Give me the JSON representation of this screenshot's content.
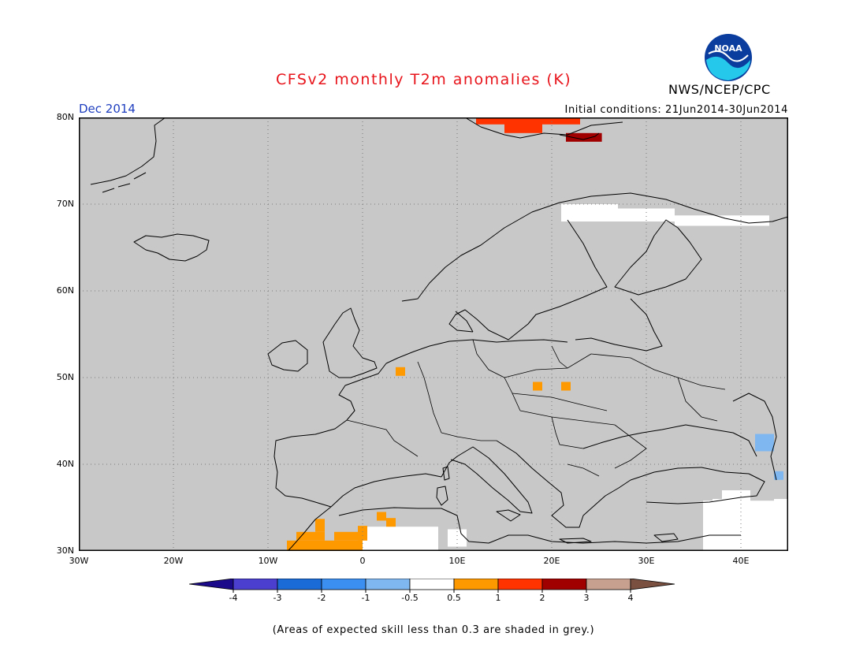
{
  "header": {
    "title": "CFSv2 monthly T2m anomalies (K)",
    "month": "Dec 2014",
    "initial_conditions": "Initial conditions: 21Jun2014-30Jun2014",
    "agency": "NWS/NCEP/CPC",
    "logo_text": "NOAA"
  },
  "map": {
    "region": "Europe",
    "lon_range": [
      -30,
      45
    ],
    "lat_range": [
      30,
      80
    ],
    "background_color": "#c8c8c8",
    "gridlines": "dotted",
    "lat_labels": [
      {
        "lat": 80,
        "text": "80N"
      },
      {
        "lat": 70,
        "text": "70N"
      },
      {
        "lat": 60,
        "text": "60N"
      },
      {
        "lat": 50,
        "text": "50N"
      },
      {
        "lat": 40,
        "text": "40N"
      },
      {
        "lat": 30,
        "text": "30N"
      }
    ],
    "lon_labels": [
      {
        "lon": -30,
        "text": "30W"
      },
      {
        "lon": -20,
        "text": "20W"
      },
      {
        "lon": -10,
        "text": "10W"
      },
      {
        "lon": 0,
        "text": "0"
      },
      {
        "lon": 10,
        "text": "10E"
      },
      {
        "lon": 20,
        "text": "20E"
      },
      {
        "lon": 30,
        "text": "30E"
      },
      {
        "lon": 40,
        "text": "40E"
      }
    ],
    "anomaly_cells": [
      {
        "lon": 12,
        "lat": 79.2,
        "w": 11,
        "h": 1,
        "color": "#ff3300"
      },
      {
        "lon": 15,
        "lat": 78.2,
        "w": 4,
        "h": 1.2,
        "color": "#ff3300"
      },
      {
        "lon": 21.5,
        "lat": 77.2,
        "w": 3.8,
        "h": 1,
        "color": "#a00000"
      },
      {
        "lon": 3.5,
        "lat": 50.2,
        "w": 1,
        "h": 1,
        "color": "#ff9900"
      },
      {
        "lon": 18,
        "lat": 48.5,
        "w": 1,
        "h": 1,
        "color": "#ff9900"
      },
      {
        "lon": 21,
        "lat": 48.5,
        "w": 1,
        "h": 1,
        "color": "#ff9900"
      },
      {
        "lon": -8,
        "lat": 30,
        "w": 8,
        "h": 1.2,
        "color": "#ff9900"
      },
      {
        "lon": -7,
        "lat": 31.2,
        "w": 3,
        "h": 1,
        "color": "#ff9900"
      },
      {
        "lon": -5,
        "lat": 32.2,
        "w": 1,
        "h": 1.5,
        "color": "#ff9900"
      },
      {
        "lon": -3,
        "lat": 31.2,
        "w": 3,
        "h": 1,
        "color": "#ff9900"
      },
      {
        "lon": -0.5,
        "lat": 31.2,
        "w": 1,
        "h": 1.7,
        "color": "#ff9900"
      },
      {
        "lon": 1.5,
        "lat": 33.5,
        "w": 1,
        "h": 1,
        "color": "#ff9900"
      },
      {
        "lon": 2.5,
        "lat": 32.8,
        "w": 1,
        "h": 1,
        "color": "#ff9900"
      },
      {
        "lon": 41.5,
        "lat": 41.5,
        "w": 2,
        "h": 2,
        "color": "#7fb8f0"
      },
      {
        "lon": 43.5,
        "lat": 38.2,
        "w": 1,
        "h": 1,
        "color": "#7fb8f0"
      }
    ],
    "neutral_regions": [
      {
        "lon": 0,
        "lat": 30,
        "w": 8,
        "h": 2.8
      },
      {
        "lon": 9,
        "lat": 30.5,
        "w": 2,
        "h": 2
      },
      {
        "lon": 21,
        "lat": 68,
        "w": 6,
        "h": 2
      },
      {
        "lon": 27,
        "lat": 68,
        "w": 6,
        "h": 1.5
      },
      {
        "lon": 33,
        "lat": 67.5,
        "w": 10,
        "h": 1.2
      },
      {
        "lon": 43.5,
        "lat": 30,
        "w": 1.5,
        "h": 6
      },
      {
        "lon": 36,
        "lat": 30,
        "w": 8,
        "h": 5.8
      },
      {
        "lon": 38,
        "lat": 36,
        "w": 3,
        "h": 1
      },
      {
        "lon": 37,
        "lat": 34,
        "w": 4,
        "h": 2
      }
    ]
  },
  "colorbar": {
    "colors": [
      "#1b0a8a",
      "#4b3fd0",
      "#1a6bd8",
      "#3b8ff0",
      "#7fb8f0",
      "#ffffff",
      "#ff9900",
      "#ff3300",
      "#a00000",
      "#c8a090",
      "#7a5040"
    ],
    "labels": [
      "-4",
      "-3",
      "-2",
      "-1",
      "-0.5",
      "0.5",
      "1",
      "2",
      "3",
      "4"
    ]
  },
  "footnote": "(Areas of expected skill less than 0.3 are shaded in grey.)"
}
